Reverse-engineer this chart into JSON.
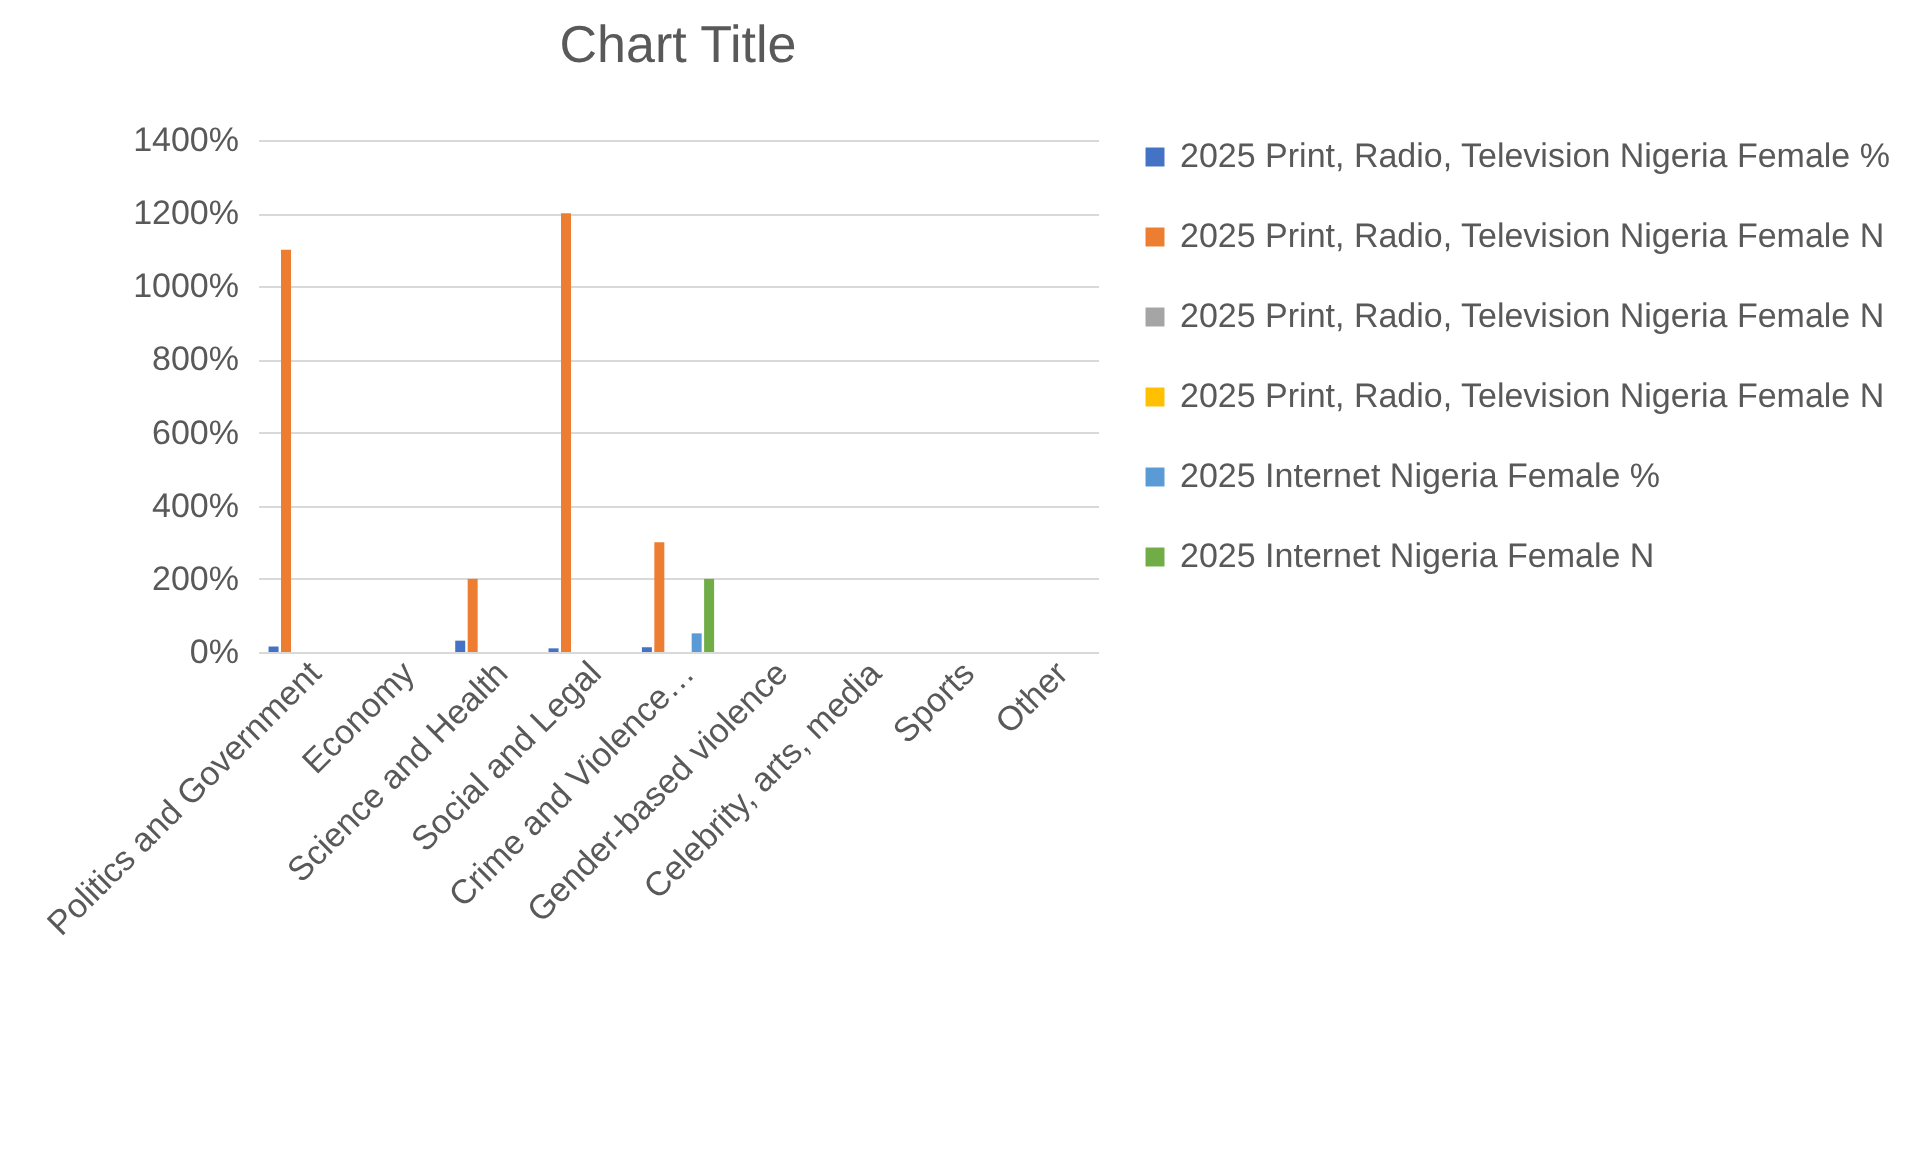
{
  "chart_data": {
    "type": "bar",
    "title": "Chart Title",
    "categories": [
      "Politics and Government",
      "Economy",
      "Science and Health",
      "Social and Legal",
      "Crime and Violence…",
      "Gender-based violence",
      "Celebrity, arts, media",
      "Sports",
      "Other"
    ],
    "series": [
      {
        "name": "2025 Print, Radio, Television Nigeria Female %",
        "color": "#4472c4",
        "values": [
          15,
          null,
          31,
          10,
          13,
          null,
          null,
          null,
          null
        ]
      },
      {
        "name": "2025 Print, Radio, Television Nigeria Female N",
        "color": "#ed7d31",
        "values": [
          1100,
          null,
          200,
          1200,
          300,
          null,
          null,
          null,
          null
        ]
      },
      {
        "name": "2025 Print, Radio, Television Nigeria Female N",
        "color": "#a5a5a5",
        "values": [
          null,
          null,
          null,
          null,
          null,
          null,
          null,
          null,
          null
        ]
      },
      {
        "name": "2025 Print, Radio, Television Nigeria Female N",
        "color": "#ffc000",
        "values": [
          null,
          null,
          null,
          null,
          null,
          null,
          null,
          null,
          null
        ]
      },
      {
        "name": "2025 Internet Nigeria Female %",
        "color": "#5b9bd5",
        "values": [
          null,
          null,
          null,
          null,
          51,
          null,
          null,
          null,
          null
        ]
      },
      {
        "name": "2025 Internet Nigeria Female N",
        "color": "#70ad47",
        "values": [
          null,
          null,
          null,
          null,
          200,
          null,
          null,
          null,
          null
        ]
      }
    ],
    "ylim": [
      0,
      1400
    ],
    "yticks": [
      {
        "value": 0,
        "label": "0%"
      },
      {
        "value": 200,
        "label": "200%"
      },
      {
        "value": 400,
        "label": "400%"
      },
      {
        "value": 600,
        "label": "600%"
      },
      {
        "value": 800,
        "label": "800%"
      },
      {
        "value": 1000,
        "label": "1000%"
      },
      {
        "value": 1200,
        "label": "1200%"
      },
      {
        "value": 1400,
        "label": "1400%"
      }
    ],
    "grid": "y",
    "legend": "right"
  }
}
